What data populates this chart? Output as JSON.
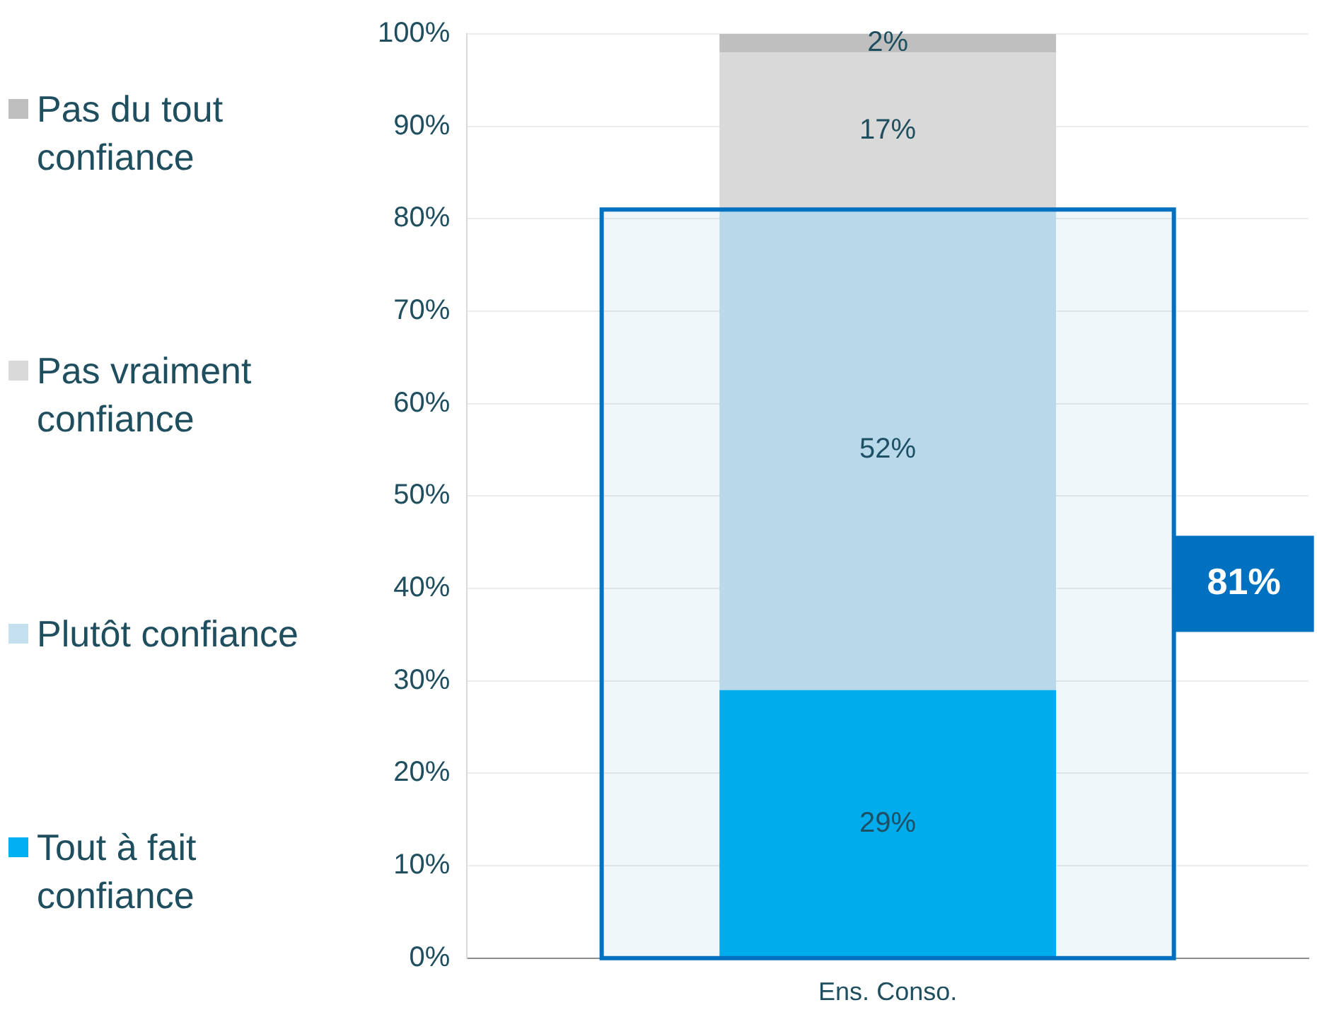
{
  "chart_data": {
    "type": "bar",
    "stacked": true,
    "categories": [
      "Ens. Conso."
    ],
    "series": [
      {
        "name": "Tout à fait confiance",
        "color": "#00b0f0",
        "values": [
          29
        ],
        "value_labels": [
          "29%"
        ]
      },
      {
        "name": "Plutôt confiance",
        "color": "#c5e0ee",
        "values": [
          52
        ],
        "value_labels": [
          "52%"
        ]
      },
      {
        "name": "Pas vraiment confiance",
        "color": "#d9d9d9",
        "values": [
          17
        ],
        "value_labels": [
          "17%"
        ]
      },
      {
        "name": "Pas du tout confiance",
        "color": "#bfbfbf",
        "values": [
          2
        ],
        "value_labels": [
          "2%"
        ]
      }
    ],
    "ylim": [
      0,
      100
    ],
    "yticks": [
      {
        "value": 0,
        "label": "0%"
      },
      {
        "value": 10,
        "label": "10%"
      },
      {
        "value": 20,
        "label": "20%"
      },
      {
        "value": 30,
        "label": "30%"
      },
      {
        "value": 40,
        "label": "40%"
      },
      {
        "value": 50,
        "label": "50%"
      },
      {
        "value": 60,
        "label": "60%"
      },
      {
        "value": 70,
        "label": "70%"
      },
      {
        "value": 80,
        "label": "80%"
      },
      {
        "value": 90,
        "label": "90%"
      },
      {
        "value": 100,
        "label": "100%"
      }
    ],
    "grid": "y",
    "legend": "left",
    "bands": [
      {
        "axis": "y",
        "from": 0,
        "to": 81,
        "label": "81%",
        "color": "#0070c0"
      }
    ]
  }
}
